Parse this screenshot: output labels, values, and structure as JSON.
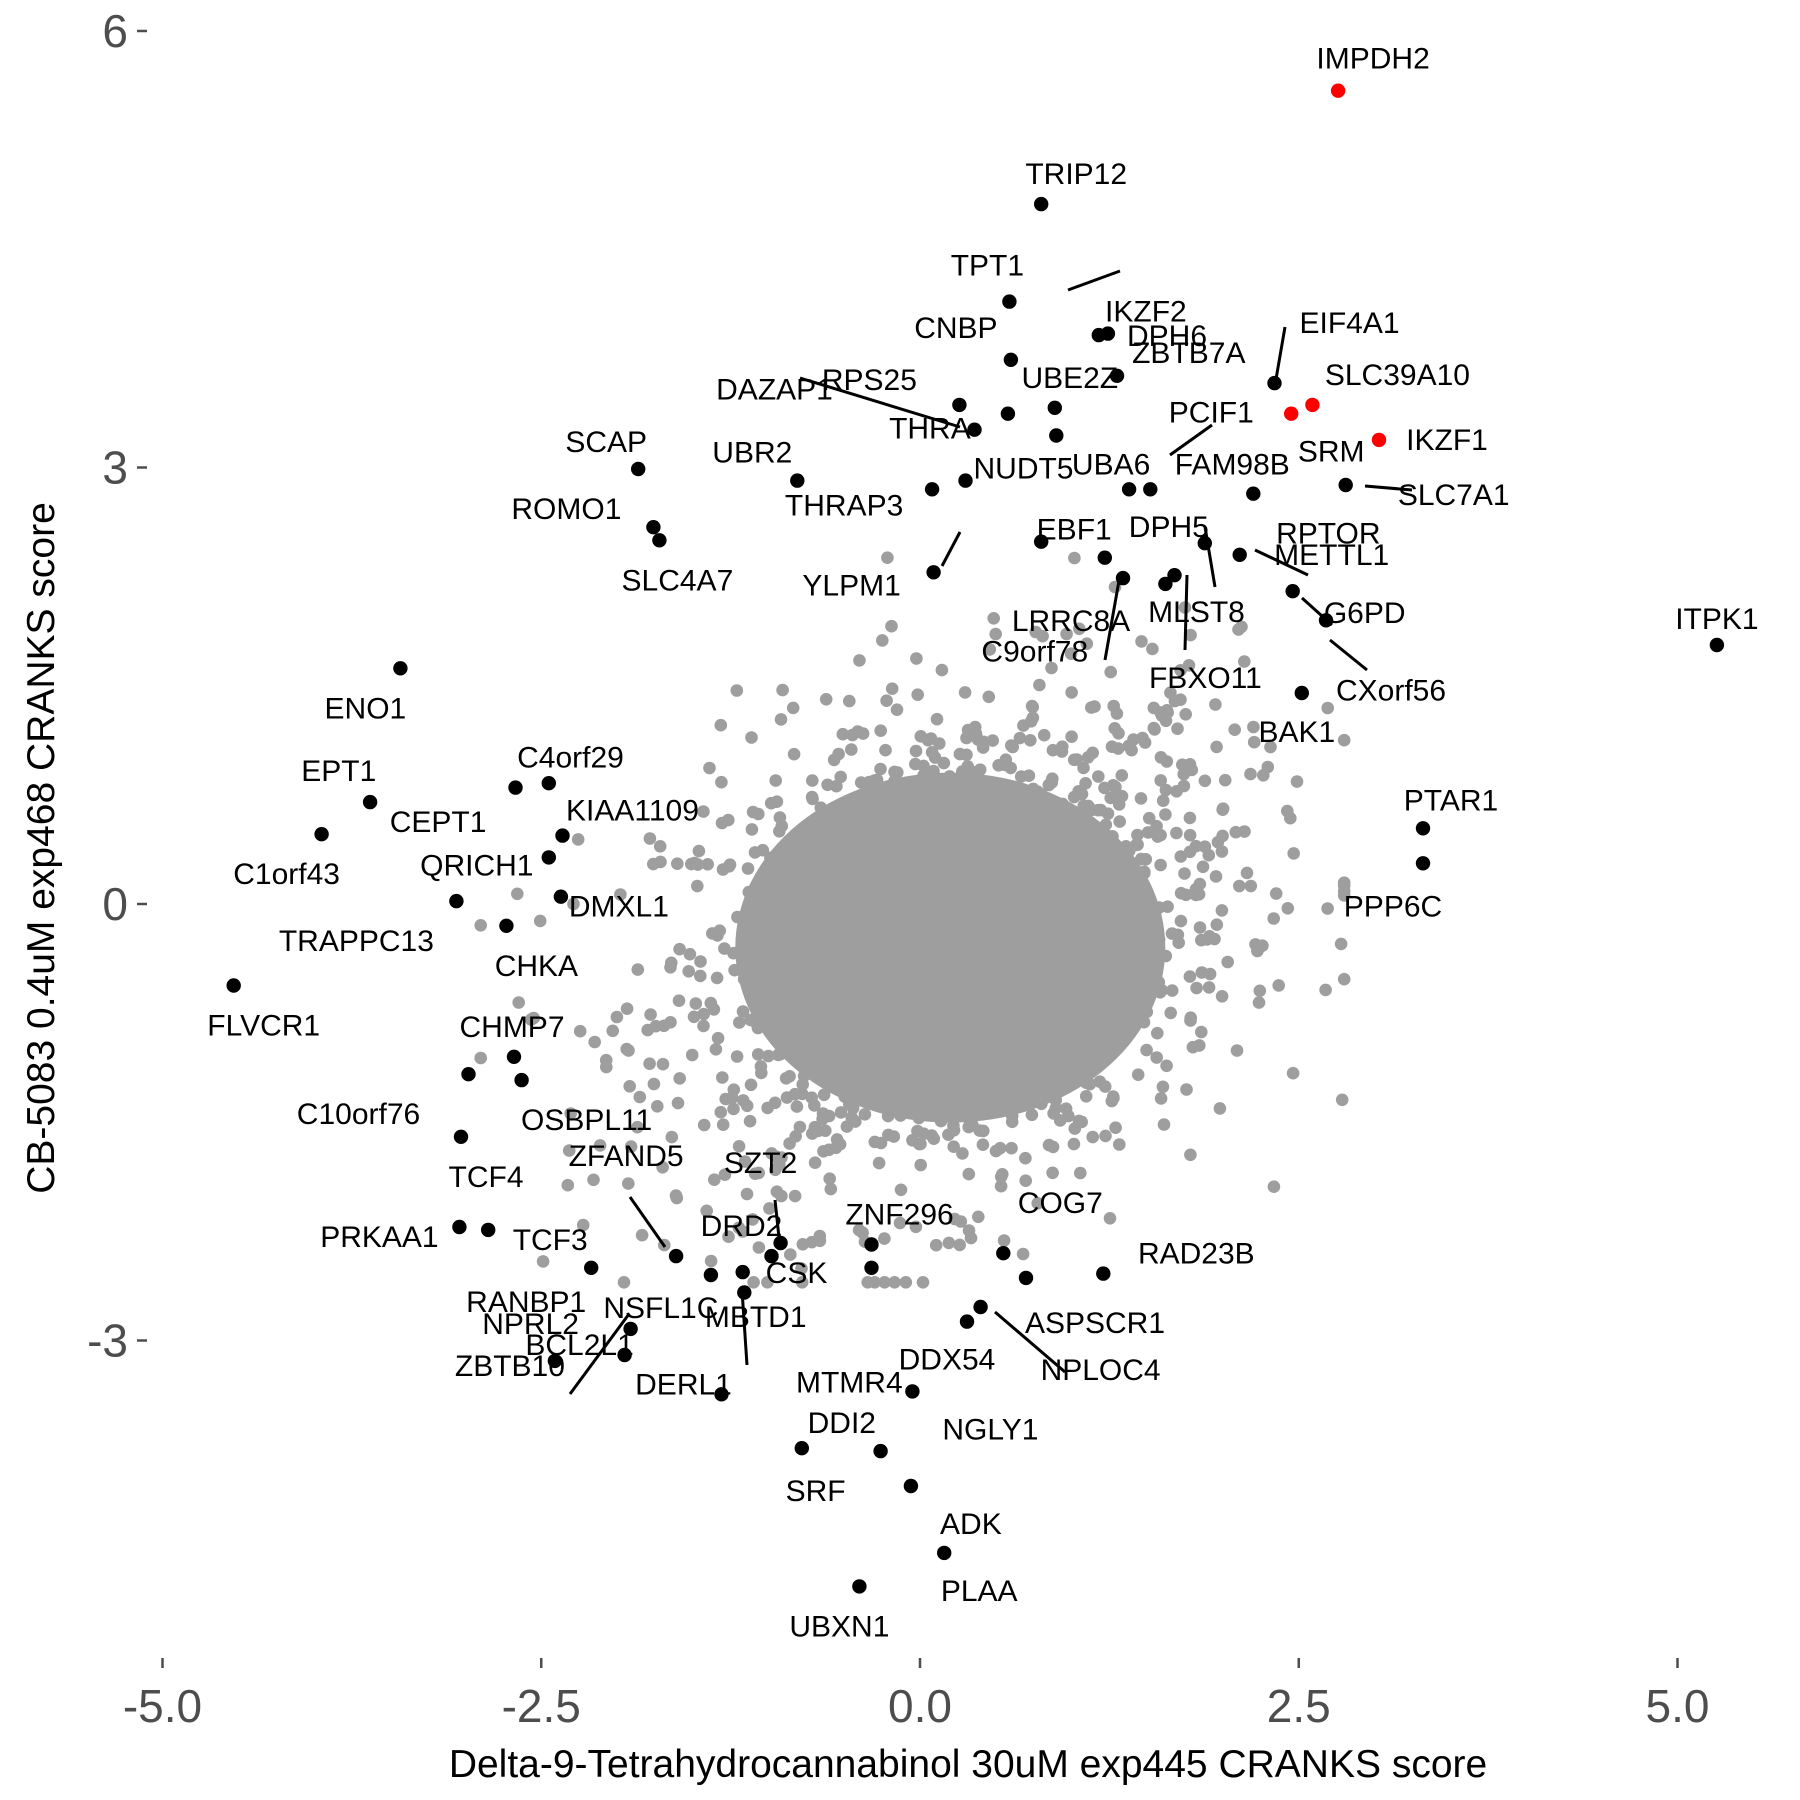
{
  "chart_data": {
    "type": "scatter",
    "title": "",
    "xlabel": "Delta-9-Tetrahydrocannabinol 30uM exp445 CRANKS score",
    "ylabel": "CB-5083 0.4uM exp468 CRANKS score",
    "xlim": [
      -5.0,
      5.3
    ],
    "ylim": [
      -5.0,
      6.0
    ],
    "x_ticks": [
      -5.0,
      -2.5,
      0.0,
      2.5,
      5.0
    ],
    "x_tick_labels": [
      "-5.0",
      "-2.5",
      "0.0",
      "2.5",
      "5.0"
    ],
    "y_ticks": [
      -3,
      0,
      3,
      6
    ],
    "y_tick_labels": [
      "-3",
      "0",
      "3",
      "6"
    ],
    "grid": false,
    "legend": "none",
    "colors": {
      "background": "#4d4d4d",
      "labeled": "#000000",
      "highlight": "#ff0000"
    },
    "background_cloud": {
      "description_count": 1600,
      "center": [
        0.2,
        -0.3
      ],
      "sd": [
        0.95,
        0.85
      ]
    },
    "series": [
      {
        "color": "#000000",
        "points": [
          {
            "label": "TRIP12",
            "x": 0.8,
            "y": 4.81
          },
          {
            "label": "TPT1",
            "x": 0.59,
            "y": 4.14
          },
          {
            "label": "IKZF2",
            "x": 1.24,
            "y": 3.92
          },
          {
            "label": "DPH6",
            "x": 1.3,
            "y": 3.63
          },
          {
            "label": "CNBP",
            "x": 0.6,
            "y": 3.74
          },
          {
            "label": "ZBTB7A",
            "x": 1.18,
            "y": 3.91
          },
          {
            "label": "EIF4A1",
            "x": 2.34,
            "y": 3.58
          },
          {
            "label": "UBE2Z",
            "x": 0.89,
            "y": 3.41
          },
          {
            "label": "DAZAP1",
            "x": 0.36,
            "y": 3.26
          },
          {
            "label": "RPS25",
            "x": 0.26,
            "y": 3.43
          },
          {
            "label": "THRA",
            "x": 0.58,
            "y": 3.37
          },
          {
            "label": "PCIF1",
            "x": 0.9,
            "y": 3.22
          },
          {
            "label": "SCAP",
            "x": -1.86,
            "y": 2.99
          },
          {
            "label": "UBR2",
            "x": -0.81,
            "y": 2.91
          },
          {
            "label": "NUDT5",
            "x": 0.3,
            "y": 2.91
          },
          {
            "label": "UBA6",
            "x": 1.38,
            "y": 2.85
          },
          {
            "label": "FAM98B",
            "x": 1.52,
            "y": 2.85
          },
          {
            "label": "SLC7A1",
            "x": 2.81,
            "y": 2.88
          },
          {
            "label": "RPTOR",
            "x": 2.2,
            "y": 2.82
          },
          {
            "label": "ROMO1",
            "x": -1.76,
            "y": 2.59
          },
          {
            "label": "SLC4A7",
            "x": -1.72,
            "y": 2.5
          },
          {
            "label": "THRAP3",
            "x": 0.08,
            "y": 2.85
          },
          {
            "label": "DPH5",
            "x": 1.88,
            "y": 2.48
          },
          {
            "label": "YLPM1",
            "x": 0.09,
            "y": 2.28
          },
          {
            "label": "EBF1",
            "x": 0.8,
            "y": 2.49
          },
          {
            "label": "METTL1",
            "x": 2.11,
            "y": 2.4
          },
          {
            "label": "LRRC8A",
            "x": 1.34,
            "y": 2.24
          },
          {
            "label": "MLST8",
            "x": 1.68,
            "y": 2.26
          },
          {
            "label": "G6PD",
            "x": 2.46,
            "y": 2.15
          },
          {
            "label": "C9orf78",
            "x": 1.22,
            "y": 2.38
          },
          {
            "label": "FBXO11",
            "x": 1.62,
            "y": 2.2
          },
          {
            "label": "CXorf56",
            "x": 2.68,
            "y": 1.95
          },
          {
            "label": "ITPK1",
            "x": 5.26,
            "y": 1.78
          },
          {
            "label": "ENO1",
            "x": -3.43,
            "y": 1.62
          },
          {
            "label": "BAK1",
            "x": 2.52,
            "y": 1.45
          },
          {
            "label": "C4orf29",
            "x": -2.67,
            "y": 0.8
          },
          {
            "label": "EPT1",
            "x": -2.45,
            "y": 0.83
          },
          {
            "label": "CEPT1",
            "x": -3.63,
            "y": 0.7
          },
          {
            "label": "KIAA1109",
            "x": -2.36,
            "y": 0.47
          },
          {
            "label": "C1orf43",
            "x": -3.95,
            "y": 0.48
          },
          {
            "label": "QRICH1",
            "x": -2.45,
            "y": 0.32
          },
          {
            "label": "PTAR1",
            "x": 3.32,
            "y": 0.52
          },
          {
            "label": "PPP6C",
            "x": 3.32,
            "y": 0.28
          },
          {
            "label": "DMXL1",
            "x": -2.37,
            "y": 0.05
          },
          {
            "label": "TRAPPC13",
            "x": -3.06,
            "y": 0.02
          },
          {
            "label": "CHKA",
            "x": -2.73,
            "y": -0.15
          },
          {
            "label": "FLVCR1",
            "x": -4.53,
            "y": -0.56
          },
          {
            "label": "CHMP7",
            "x": -2.68,
            "y": -1.05
          },
          {
            "label": "C10orf76",
            "x": -2.98,
            "y": -1.17
          },
          {
            "label": "OSBPL11",
            "x": -2.63,
            "y": -1.21
          },
          {
            "label": "TCF4",
            "x": -3.03,
            "y": -1.6
          },
          {
            "label": "PRKAA1",
            "x": -3.04,
            "y": -2.22
          },
          {
            "label": "TCF3",
            "x": -2.85,
            "y": -2.24
          },
          {
            "label": "ZFAND5",
            "x": -1.61,
            "y": -2.42
          },
          {
            "label": "SZT2",
            "x": -0.92,
            "y": -2.33
          },
          {
            "label": "DRD2",
            "x": -0.98,
            "y": -2.42
          },
          {
            "label": "ZNF296",
            "x": -0.32,
            "y": -2.34
          },
          {
            "label": "COG7",
            "x": 0.55,
            "y": -2.4
          },
          {
            "label": "RANBP1",
            "x": -2.17,
            "y": -2.5
          },
          {
            "label": "NSFL1C",
            "x": -1.38,
            "y": -2.55
          },
          {
            "label": "MBTD1",
            "x": -1.17,
            "y": -2.53
          },
          {
            "label": "RAD23B",
            "x": 1.21,
            "y": -2.54
          },
          {
            "label": "ASPSCR1",
            "x": 0.7,
            "y": -2.57
          },
          {
            "label": "MTMR4",
            "x": -1.16,
            "y": -2.67
          },
          {
            "label": "CSK",
            "x": -0.32,
            "y": -2.5
          },
          {
            "label": "NPLOC4",
            "x": 0.4,
            "y": -2.77
          },
          {
            "label": "DDX54",
            "x": 0.31,
            "y": -2.87
          },
          {
            "label": "NPRL2",
            "x": -1.91,
            "y": -2.92
          },
          {
            "label": "ZBTB10",
            "x": -2.41,
            "y": -3.14
          },
          {
            "label": "BCL2L1",
            "x": -1.95,
            "y": -3.1
          },
          {
            "label": "DERL1",
            "x": -1.31,
            "y": -3.37
          },
          {
            "label": "NGLY1",
            "x": -0.05,
            "y": -3.35
          },
          {
            "label": "DDI2",
            "x": -0.78,
            "y": -3.74
          },
          {
            "label": "SRF",
            "x": -0.26,
            "y": -3.76
          },
          {
            "label": "ADK",
            "x": -0.06,
            "y": -4.0
          },
          {
            "label": "PLAA",
            "x": 0.16,
            "y": -4.46
          },
          {
            "label": "UBXN1",
            "x": -0.4,
            "y": -4.69
          }
        ]
      },
      {
        "color": "#ff0000",
        "points": [
          {
            "label": "IMPDH2",
            "x": 2.76,
            "y": 5.59
          },
          {
            "label": "SLC39A10",
            "x": 2.59,
            "y": 3.43
          },
          {
            "label": "SRM",
            "x": 2.45,
            "y": 3.37
          },
          {
            "label": "IKZF1",
            "x": 3.03,
            "y": 3.19
          }
        ]
      }
    ]
  }
}
